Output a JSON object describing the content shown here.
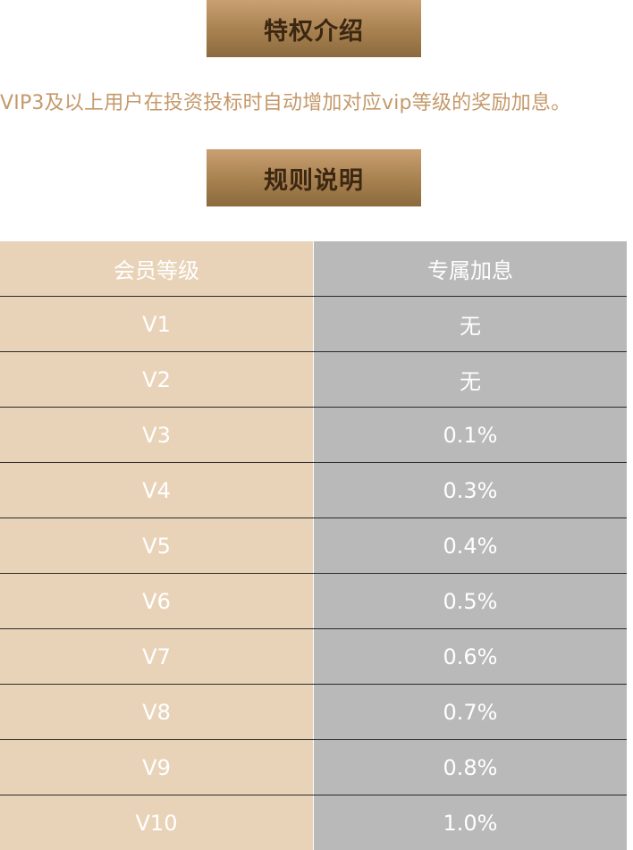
{
  "sections": {
    "intro_title": "特权介绍",
    "intro_text": "VIP3及以上用户在投资投标时自动增加对应vip等级的奖励加息。",
    "rules_title": "规则说明"
  },
  "table": {
    "headers": [
      "会员等级",
      "专属加息"
    ],
    "rows": [
      {
        "level": "V1",
        "rate": "无"
      },
      {
        "level": "V2",
        "rate": "无"
      },
      {
        "level": "V3",
        "rate": "0.1%"
      },
      {
        "level": "V4",
        "rate": "0.3%"
      },
      {
        "level": "V5",
        "rate": "0.4%"
      },
      {
        "level": "V6",
        "rate": "0.5%"
      },
      {
        "level": "V7",
        "rate": "0.6%"
      },
      {
        "level": "V8",
        "rate": "0.7%"
      },
      {
        "level": "V9",
        "rate": "0.8%"
      },
      {
        "level": "V10",
        "rate": "1.0%"
      }
    ]
  },
  "colors": {
    "banner_gradient_top": "#c9a072",
    "banner_gradient_bottom": "#8b6a3e",
    "banner_text": "#3b2712",
    "intro_text": "#c4996a",
    "level_column_bg": "#e9d3b8",
    "rate_column_bg": "#b9b9b9",
    "cell_text": "#ffffff"
  }
}
